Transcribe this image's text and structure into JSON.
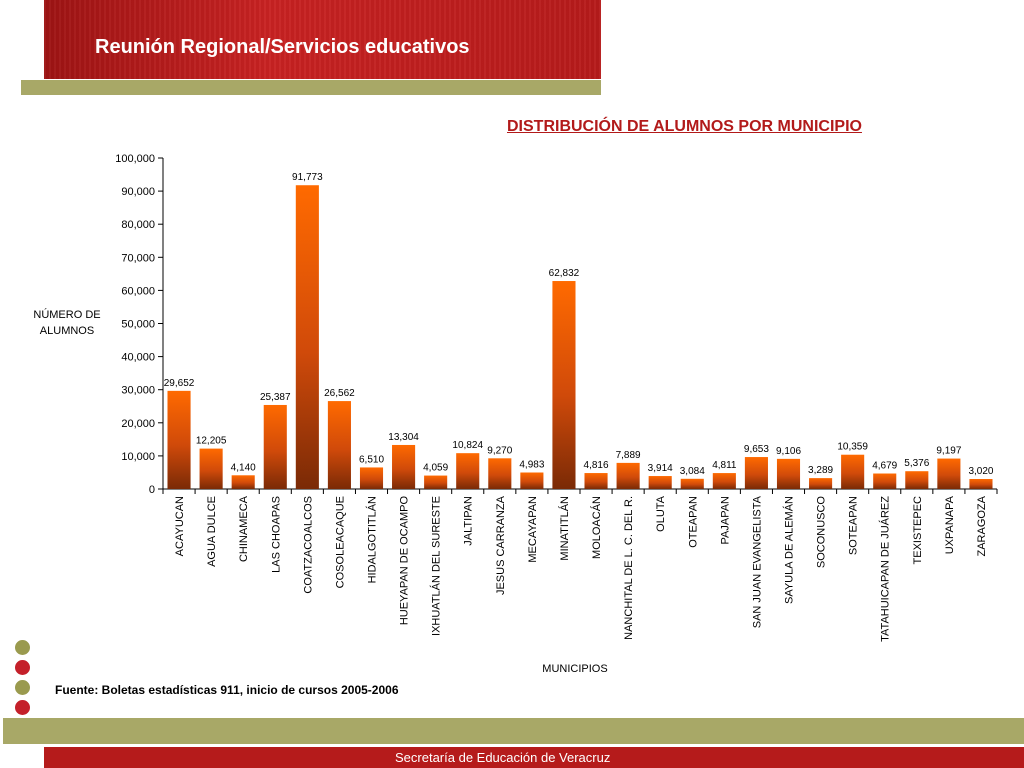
{
  "header": {
    "title": "Reunión Regional/Servicios educativos"
  },
  "source_note": "Fuente: Boletas estadísticas 911, inicio de cursos 2005-2006",
  "footer": {
    "text": "Secretaría de Educación de Veracruz"
  },
  "colors": {
    "header_red": "#b61b1b",
    "olive": "#a8a867",
    "bar_top": "#ff6a00",
    "bar_bottom": "#7a2a06",
    "title_red": "#b21a1a"
  },
  "chart_data": {
    "type": "bar",
    "title": "DISTRIBUCIÓN DE ALUMNOS POR MUNICIPIO",
    "ylabel": "NÚMERO DE ALUMNOS",
    "ylabel_lines": [
      "NÚMERO DE",
      "ALUMNOS"
    ],
    "xlabel": "MUNICIPIOS",
    "ylim": [
      0,
      100000
    ],
    "yticks": [
      0,
      10000,
      20000,
      30000,
      40000,
      50000,
      60000,
      70000,
      80000,
      90000,
      100000
    ],
    "ytick_labels": [
      "0",
      "10,000",
      "20,000",
      "30,000",
      "40,000",
      "50,000",
      "60,000",
      "70,000",
      "80,000",
      "90,000",
      "100,000"
    ],
    "grid": false,
    "categories": [
      "ACAYUCAN",
      "AGUA DULCE",
      "CHINAMECA",
      "LAS CHOAPAS",
      "COATZACOALCOS",
      "COSOLEACAQUE",
      "HIDALGOTITLÁN",
      "HUEYAPAN DE OCAMPO",
      "IXHUATLÁN DEL SURESTE",
      "JALTIPAN",
      "JESUS CARRANZA",
      "MECAYAPAN",
      "MINATITLÁN",
      "MOLOACÁN",
      "NANCHITAL DE L. C. DEL R.",
      "OLUTA",
      "OTEAPAN",
      "PAJAPAN",
      "SAN JUAN EVANGELISTA",
      "SAYULA DE ALEMÁN",
      "SOCONUSCO",
      "SOTEAPAN",
      "TATAHUICAPAN DE JUÁREZ",
      "TEXISTEPEC",
      "UXPANAPA",
      "ZARAGOZA"
    ],
    "values": [
      29652,
      12205,
      4140,
      25387,
      91773,
      26562,
      6510,
      13304,
      4059,
      10824,
      9270,
      4983,
      62832,
      4816,
      7889,
      3914,
      3084,
      4811,
      9653,
      9106,
      3289,
      10359,
      4679,
      5376,
      9197,
      3020
    ],
    "value_labels": [
      "29,652",
      "12,205",
      "4,140",
      "25,387",
      "91,773",
      "26,562",
      "6,510",
      "13,304",
      "4,059",
      "10,824",
      "9,270",
      "4,983",
      "62,832",
      "4,816",
      "7,889",
      "3,914",
      "3,084",
      "4,811",
      "9,653",
      "9,106",
      "3,289",
      "10,359",
      "4,679",
      "5,376",
      "9,197",
      "3,020"
    ]
  }
}
